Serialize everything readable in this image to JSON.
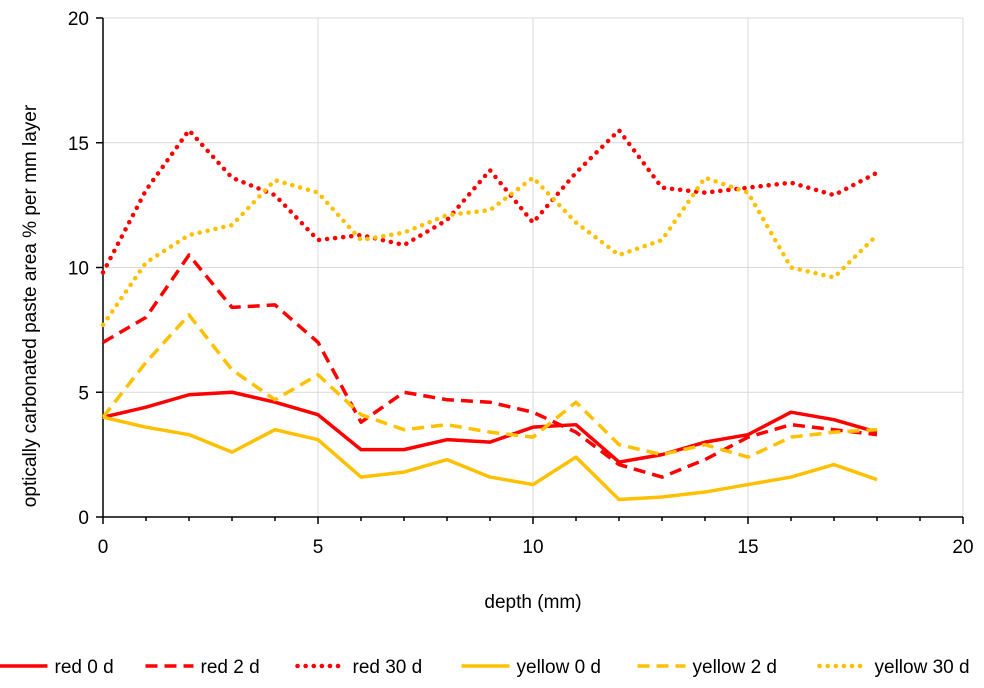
{
  "chart_data": {
    "type": "line",
    "title": "",
    "xlabel": "depth (mm)",
    "ylabel": "optically carbonated paste area % per mm layer",
    "xlim": [
      0,
      20
    ],
    "ylim": [
      0,
      20
    ],
    "xticks": [
      0,
      5,
      10,
      15,
      20
    ],
    "yticks": [
      0,
      5,
      10,
      15,
      20
    ],
    "grid": "vertical and horizontal",
    "legend_position": "bottom",
    "x": [
      0,
      1,
      2,
      3,
      4,
      5,
      6,
      7,
      8,
      9,
      10,
      11,
      12,
      13,
      14,
      15,
      16,
      17,
      18
    ],
    "series": [
      {
        "name": "red 0 d",
        "color": "#ff0000",
        "style": "solid",
        "values": [
          4.0,
          4.4,
          4.9,
          5.0,
          4.6,
          4.1,
          2.7,
          2.7,
          3.1,
          3.0,
          3.6,
          3.7,
          2.2,
          2.5,
          3.0,
          3.3,
          4.2,
          3.9,
          3.4
        ]
      },
      {
        "name": "red 2 d",
        "color": "#ff0000",
        "style": "dashed",
        "values": [
          7.0,
          8.0,
          10.5,
          8.4,
          8.5,
          7.0,
          3.8,
          5.0,
          4.7,
          4.6,
          4.2,
          3.4,
          2.1,
          1.6,
          2.3,
          3.2,
          3.7,
          3.5,
          3.3
        ]
      },
      {
        "name": "red 30 d",
        "color": "#ff0000",
        "style": "dotted",
        "values": [
          9.8,
          13.1,
          15.5,
          13.6,
          12.9,
          11.1,
          11.3,
          10.9,
          11.9,
          13.9,
          11.8,
          13.8,
          15.5,
          13.2,
          13.0,
          13.2,
          13.4,
          12.9,
          13.8
        ]
      },
      {
        "name": "yellow 0 d",
        "color": "#ffc000",
        "style": "solid",
        "values": [
          4.0,
          3.6,
          3.3,
          2.6,
          3.5,
          3.1,
          1.6,
          1.8,
          2.3,
          1.6,
          1.3,
          2.4,
          0.7,
          0.8,
          1.0,
          1.3,
          1.6,
          2.1,
          1.5
        ]
      },
      {
        "name": "yellow 2 d",
        "color": "#ffc000",
        "style": "dashed",
        "values": [
          4.0,
          6.2,
          8.1,
          5.9,
          4.7,
          5.7,
          4.1,
          3.5,
          3.7,
          3.4,
          3.2,
          4.6,
          2.9,
          2.5,
          2.9,
          2.4,
          3.2,
          3.4,
          3.5
        ]
      },
      {
        "name": "yellow 30 d",
        "color": "#ffc000",
        "style": "dotted",
        "values": [
          7.7,
          10.2,
          11.3,
          11.7,
          13.5,
          13.0,
          11.1,
          11.4,
          12.1,
          12.3,
          13.6,
          11.8,
          10.5,
          11.1,
          13.6,
          13.0,
          10.0,
          9.6,
          11.3
        ]
      }
    ]
  }
}
